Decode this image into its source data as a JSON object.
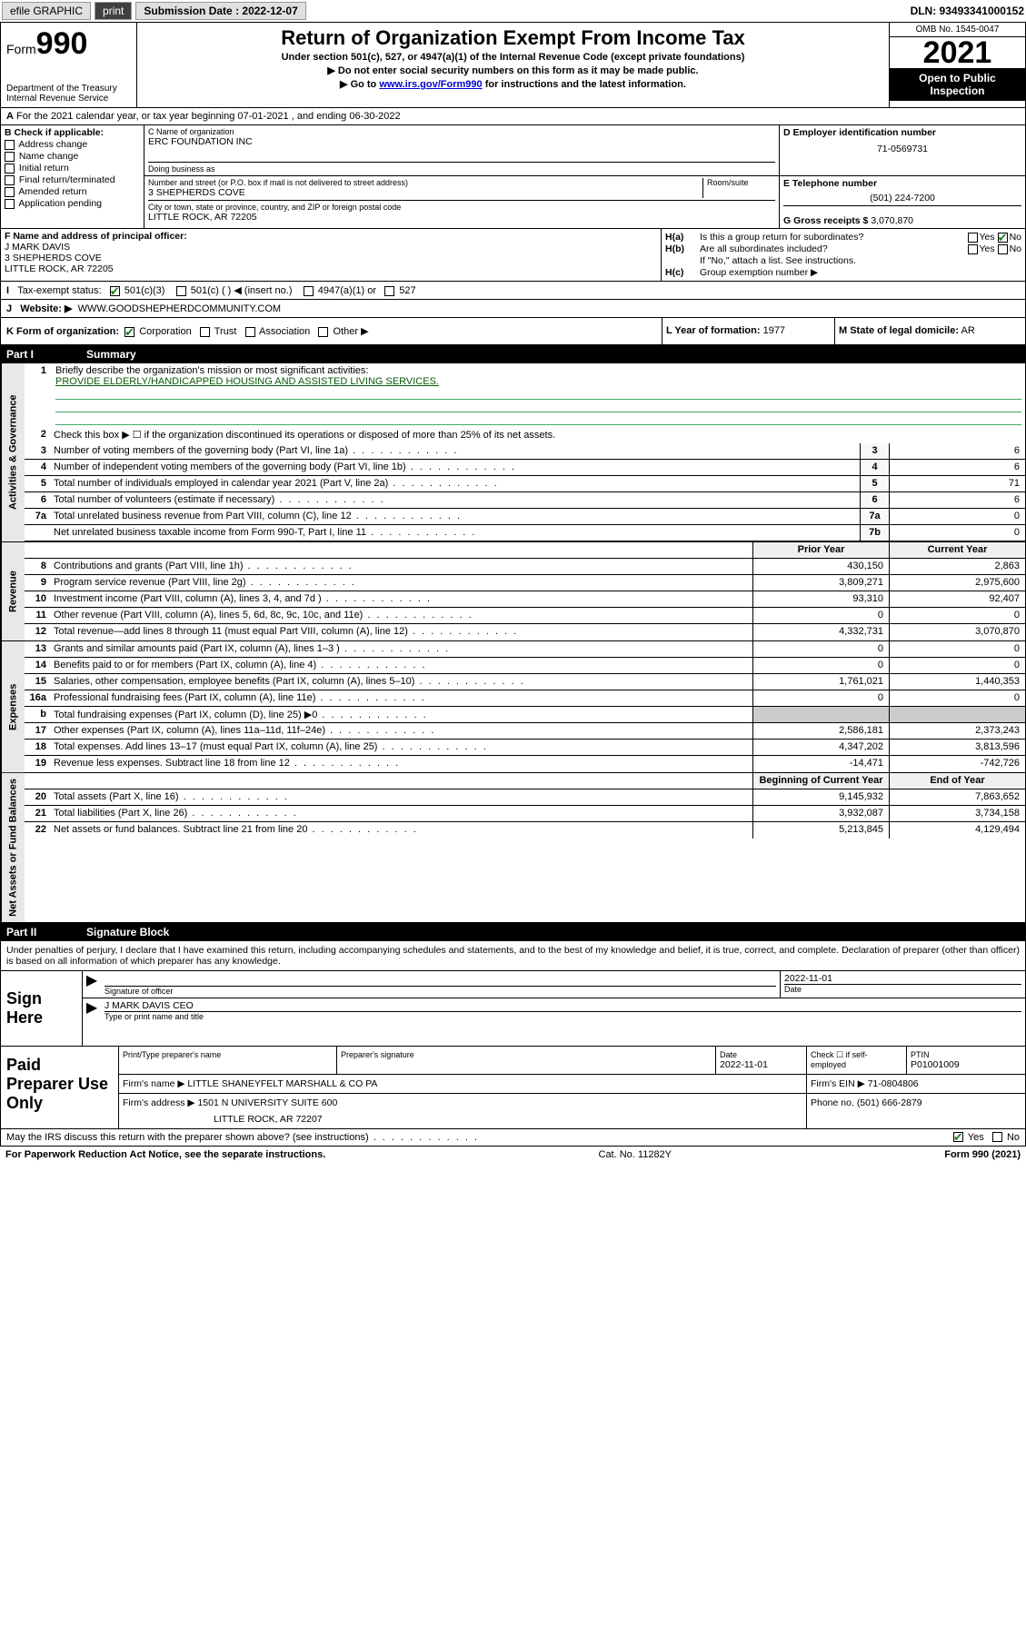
{
  "topbar": {
    "efile": "efile GRAPHIC",
    "print": "print",
    "sub_label": "Submission Date : 2022-12-07",
    "dln": "DLN: 93493341000152"
  },
  "header": {
    "form_word": "Form",
    "form_num": "990",
    "dept": "Department of the Treasury",
    "irs": "Internal Revenue Service",
    "title": "Return of Organization Exempt From Income Tax",
    "sub1": "Under section 501(c), 527, or 4947(a)(1) of the Internal Revenue Code (except private foundations)",
    "sub2": "▶ Do not enter social security numbers on this form as it may be made public.",
    "sub3_pre": "▶ Go to ",
    "sub3_link": "www.irs.gov/Form990",
    "sub3_post": " for instructions and the latest information.",
    "omb": "OMB No. 1545-0047",
    "year": "2021",
    "open": "Open to Public Inspection"
  },
  "A": {
    "text": "For the 2021 calendar year, or tax year beginning 07-01-2021   , and ending 06-30-2022"
  },
  "B": {
    "label": "B Check if applicable:",
    "items": [
      "Address change",
      "Name change",
      "Initial return",
      "Final return/terminated",
      "Amended return",
      "Application pending"
    ]
  },
  "C": {
    "name_label": "C Name of organization",
    "name": "ERC FOUNDATION INC",
    "dba_label": "Doing business as",
    "street_label": "Number and street (or P.O. box if mail is not delivered to street address)",
    "suite_label": "Room/suite",
    "street": "3 SHEPHERDS COVE",
    "city_label": "City or town, state or province, country, and ZIP or foreign postal code",
    "city": "LITTLE ROCK, AR  72205"
  },
  "D": {
    "label": "D Employer identification number",
    "value": "71-0569731"
  },
  "E": {
    "label": "E Telephone number",
    "value": "(501) 224-7200"
  },
  "G": {
    "label": "G Gross receipts $",
    "value": "3,070,870"
  },
  "F": {
    "label": "F  Name and address of principal officer:",
    "name": "J MARK DAVIS",
    "street": "3 SHEPHERDS COVE",
    "city": "LITTLE ROCK, AR  72205"
  },
  "H": {
    "a": "Is this a group return for subordinates?",
    "b": "Are all subordinates included?",
    "b2": "If \"No,\" attach a list. See instructions.",
    "c": "Group exemption number ▶"
  },
  "I": {
    "label": "Tax-exempt status:",
    "opts": [
      "501(c)(3)",
      "501(c) (  ) ◀ (insert no.)",
      "4947(a)(1) or",
      "527"
    ]
  },
  "J": {
    "label": "Website: ▶",
    "value": "WWW.GOODSHEPHERDCOMMUNITY.COM"
  },
  "K": {
    "label": "K Form of organization:",
    "opts": [
      "Corporation",
      "Trust",
      "Association",
      "Other ▶"
    ]
  },
  "L": {
    "label": "L Year of formation:",
    "value": "1977"
  },
  "M": {
    "label": "M State of legal domicile:",
    "value": "AR"
  },
  "part1": {
    "hdr_num": "Part I",
    "hdr_title": "Summary",
    "mission_label": "Briefly describe the organization's mission or most significant activities:",
    "mission": "PROVIDE ELDERLY/HANDICAPPED HOUSING AND ASSISTED LIVING SERVICES.",
    "line2": "Check this box ▶ ☐  if the organization discontinued its operations or disposed of more than 25% of its net assets.",
    "vtab_gov": "Activities & Governance",
    "vtab_rev": "Revenue",
    "vtab_exp": "Expenses",
    "vtab_net": "Net Assets or Fund Balances",
    "hdr_prior": "Prior Year",
    "hdr_curr": "Current Year",
    "hdr_beg": "Beginning of Current Year",
    "hdr_end": "End of Year",
    "rows_gov": [
      {
        "n": "3",
        "d": "Number of voting members of the governing body (Part VI, line 1a)",
        "box": "3",
        "v": "6"
      },
      {
        "n": "4",
        "d": "Number of independent voting members of the governing body (Part VI, line 1b)",
        "box": "4",
        "v": "6"
      },
      {
        "n": "5",
        "d": "Total number of individuals employed in calendar year 2021 (Part V, line 2a)",
        "box": "5",
        "v": "71"
      },
      {
        "n": "6",
        "d": "Total number of volunteers (estimate if necessary)",
        "box": "6",
        "v": "6"
      },
      {
        "n": "7a",
        "d": "Total unrelated business revenue from Part VIII, column (C), line 12",
        "box": "7a",
        "v": "0"
      },
      {
        "n": "",
        "d": "Net unrelated business taxable income from Form 990-T, Part I, line 11",
        "box": "7b",
        "v": "0"
      }
    ],
    "rows_rev": [
      {
        "n": "8",
        "d": "Contributions and grants (Part VIII, line 1h)",
        "p": "430,150",
        "c": "2,863"
      },
      {
        "n": "9",
        "d": "Program service revenue (Part VIII, line 2g)",
        "p": "3,809,271",
        "c": "2,975,600"
      },
      {
        "n": "10",
        "d": "Investment income (Part VIII, column (A), lines 3, 4, and 7d )",
        "p": "93,310",
        "c": "92,407"
      },
      {
        "n": "11",
        "d": "Other revenue (Part VIII, column (A), lines 5, 6d, 8c, 9c, 10c, and 11e)",
        "p": "0",
        "c": "0"
      },
      {
        "n": "12",
        "d": "Total revenue—add lines 8 through 11 (must equal Part VIII, column (A), line 12)",
        "p": "4,332,731",
        "c": "3,070,870"
      }
    ],
    "rows_exp": [
      {
        "n": "13",
        "d": "Grants and similar amounts paid (Part IX, column (A), lines 1–3 )",
        "p": "0",
        "c": "0"
      },
      {
        "n": "14",
        "d": "Benefits paid to or for members (Part IX, column (A), line 4)",
        "p": "0",
        "c": "0"
      },
      {
        "n": "15",
        "d": "Salaries, other compensation, employee benefits (Part IX, column (A), lines 5–10)",
        "p": "1,761,021",
        "c": "1,440,353"
      },
      {
        "n": "16a",
        "d": "Professional fundraising fees (Part IX, column (A), line 11e)",
        "p": "0",
        "c": "0"
      },
      {
        "n": "b",
        "d": "Total fundraising expenses (Part IX, column (D), line 25) ▶0",
        "p": "",
        "c": "",
        "shaded": true
      },
      {
        "n": "17",
        "d": "Other expenses (Part IX, column (A), lines 11a–11d, 11f–24e)",
        "p": "2,586,181",
        "c": "2,373,243"
      },
      {
        "n": "18",
        "d": "Total expenses. Add lines 13–17 (must equal Part IX, column (A), line 25)",
        "p": "4,347,202",
        "c": "3,813,596"
      },
      {
        "n": "19",
        "d": "Revenue less expenses. Subtract line 18 from line 12",
        "p": "-14,471",
        "c": "-742,726"
      }
    ],
    "rows_net": [
      {
        "n": "20",
        "d": "Total assets (Part X, line 16)",
        "p": "9,145,932",
        "c": "7,863,652"
      },
      {
        "n": "21",
        "d": "Total liabilities (Part X, line 26)",
        "p": "3,932,087",
        "c": "3,734,158"
      },
      {
        "n": "22",
        "d": "Net assets or fund balances. Subtract line 21 from line 20",
        "p": "5,213,845",
        "c": "4,129,494"
      }
    ]
  },
  "part2": {
    "hdr_num": "Part II",
    "hdr_title": "Signature Block",
    "penalty": "Under penalties of perjury, I declare that I have examined this return, including accompanying schedules and statements, and to the best of my knowledge and belief, it is true, correct, and complete. Declaration of preparer (other than officer) is based on all information of which preparer has any knowledge."
  },
  "sign": {
    "label": "Sign Here",
    "sig_label": "Signature of officer",
    "date": "2022-11-01",
    "date_label": "Date",
    "name": "J MARK DAVIS CEO",
    "name_label": "Type or print name and title"
  },
  "prep": {
    "label": "Paid Preparer Use Only",
    "c1": "Print/Type preparer's name",
    "c2": "Preparer's signature",
    "c3": "Date",
    "c3v": "2022-11-01",
    "c4": "Check ☐ if self-employed",
    "c5": "PTIN",
    "c5v": "P01001009",
    "firm_label": "Firm's name    ▶",
    "firm": "LITTLE SHANEYFELT MARSHALL & CO PA",
    "ein_label": "Firm's EIN ▶",
    "ein": "71-0804806",
    "addr_label": "Firm's address ▶",
    "addr1": "1501 N UNIVERSITY SUITE 600",
    "addr2": "LITTLE ROCK, AR  72207",
    "phone_label": "Phone no.",
    "phone": "(501) 666-2879"
  },
  "bottom": {
    "discuss": "May the IRS discuss this return with the preparer shown above? (see instructions)",
    "yes": "Yes",
    "no": "No"
  },
  "footer": {
    "left": "For Paperwork Reduction Act Notice, see the separate instructions.",
    "mid": "Cat. No. 11282Y",
    "right": "Form 990 (2021)"
  }
}
